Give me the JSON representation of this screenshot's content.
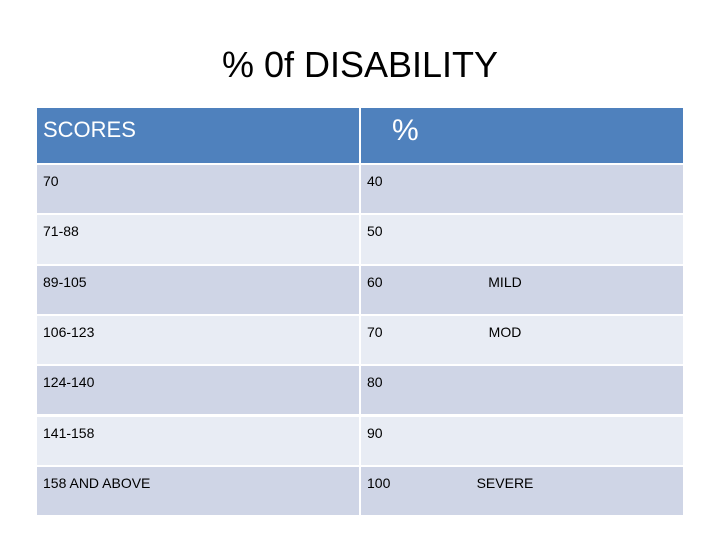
{
  "title": "% 0f DISABILITY",
  "table": {
    "header": [
      "SCORES",
      "%"
    ],
    "rows": [
      {
        "score": "70",
        "percent": "40"
      },
      {
        "score": "71-88",
        "percent": "50"
      },
      {
        "score": "89-105",
        "percent": "60",
        "note": "MILD"
      },
      {
        "score": "106-123",
        "percent": "70",
        "note": "MOD"
      },
      {
        "score": "124-140",
        "percent": "80"
      },
      {
        "score": "141-158",
        "percent": "90"
      },
      {
        "score": "158 AND ABOVE",
        "percent": "100",
        "note": "SEVERE"
      }
    ]
  }
}
